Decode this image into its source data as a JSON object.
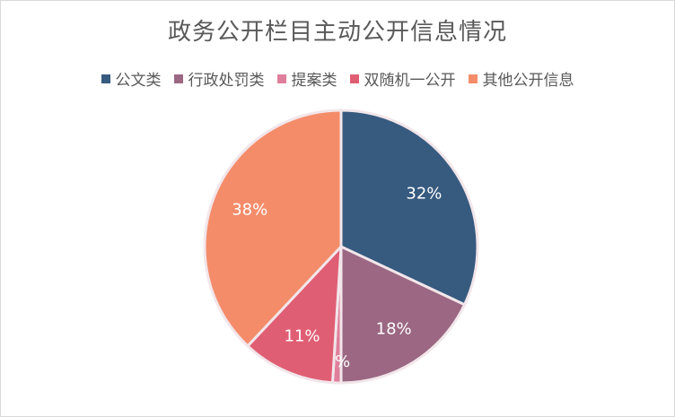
{
  "chart_data": {
    "type": "pie",
    "title": "政务公开栏目主动公开信息情况",
    "legend_position": "top",
    "categories": [
      "公文类",
      "行政处罚类",
      "提案类",
      "双随机一公开",
      "其他公开信息"
    ],
    "values": [
      32,
      18,
      1,
      11,
      38
    ],
    "labels": [
      "32%",
      "18%",
      "1%",
      "11%",
      "38%"
    ],
    "colors": [
      "#375a7f",
      "#9b6782",
      "#e07f9b",
      "#e05e74",
      "#f48c6a"
    ]
  }
}
